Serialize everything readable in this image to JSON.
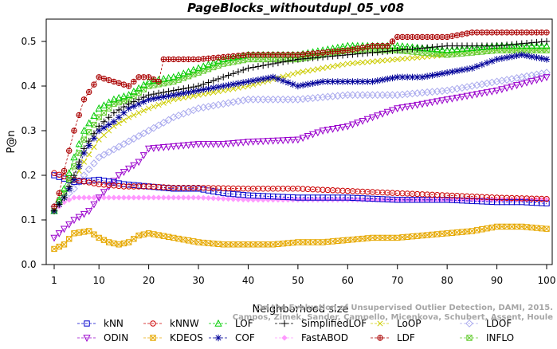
{
  "chart_data": {
    "type": "line",
    "title": "PageBlocks_withoutdupl_05_v08",
    "xlabel": "Neighborhood size",
    "ylabel": "P@n",
    "xlim": [
      1,
      100
    ],
    "ylim": [
      0,
      0.55
    ],
    "x_ticks": [
      1,
      10,
      20,
      30,
      40,
      50,
      60,
      70,
      80,
      90,
      100
    ],
    "y_ticks": [
      0.0,
      0.1,
      0.2,
      0.3,
      0.4,
      0.5
    ],
    "credit": "Campos, Zimek, Sander, Campello, Micenkova, Schubert, Assent, Houle",
    "credit_line1": "On the Evaluation of Unsupervised Outlier Detection, DAMI, 2015.",
    "series": [
      {
        "name": "kNN",
        "color": "#0000cc",
        "marker": "square",
        "x": [
          1,
          5,
          10,
          15,
          20,
          25,
          30,
          35,
          40,
          50,
          60,
          70,
          80,
          90,
          95,
          100
        ],
        "y": [
          0.2,
          0.185,
          0.19,
          0.18,
          0.175,
          0.17,
          0.17,
          0.16,
          0.155,
          0.15,
          0.15,
          0.145,
          0.145,
          0.14,
          0.14,
          0.137
        ]
      },
      {
        "name": "kNNW",
        "color": "#cc0000",
        "marker": "circle",
        "x": [
          1,
          5,
          10,
          15,
          20,
          25,
          30,
          40,
          50,
          60,
          70,
          80,
          90,
          100
        ],
        "y": [
          0.205,
          0.19,
          0.18,
          0.175,
          0.175,
          0.172,
          0.172,
          0.17,
          0.17,
          0.165,
          0.16,
          0.155,
          0.15,
          0.147
        ]
      },
      {
        "name": "LOF",
        "color": "#00cc00",
        "marker": "triangle-up",
        "x": [
          1,
          3,
          5,
          7,
          10,
          13,
          16,
          20,
          25,
          30,
          35,
          40,
          50,
          60,
          70,
          80,
          90,
          100
        ],
        "y": [
          0.12,
          0.17,
          0.24,
          0.3,
          0.35,
          0.37,
          0.38,
          0.41,
          0.42,
          0.44,
          0.46,
          0.47,
          0.47,
          0.49,
          0.49,
          0.48,
          0.49,
          0.49
        ]
      },
      {
        "name": "SimplifiedLOF",
        "color": "#000000",
        "marker": "plus",
        "x": [
          1,
          3,
          5,
          7,
          10,
          13,
          16,
          20,
          25,
          30,
          35,
          40,
          50,
          60,
          70,
          80,
          90,
          100
        ],
        "y": [
          0.12,
          0.15,
          0.2,
          0.26,
          0.31,
          0.34,
          0.36,
          0.38,
          0.39,
          0.4,
          0.42,
          0.44,
          0.46,
          0.47,
          0.48,
          0.49,
          0.49,
          0.5
        ]
      },
      {
        "name": "LoOP",
        "color": "#cccc00",
        "marker": "x",
        "x": [
          1,
          3,
          5,
          7,
          10,
          13,
          16,
          20,
          25,
          30,
          35,
          40,
          50,
          60,
          70,
          80,
          90,
          100
        ],
        "y": [
          0.12,
          0.15,
          0.19,
          0.23,
          0.28,
          0.31,
          0.33,
          0.35,
          0.37,
          0.38,
          0.39,
          0.4,
          0.43,
          0.45,
          0.46,
          0.47,
          0.48,
          0.48
        ]
      },
      {
        "name": "LDOF",
        "color": "#aaaaee",
        "marker": "diamond",
        "x": [
          1,
          3,
          5,
          7,
          10,
          15,
          20,
          25,
          30,
          35,
          40,
          50,
          60,
          70,
          80,
          90,
          100
        ],
        "y": [
          0.13,
          0.15,
          0.17,
          0.2,
          0.24,
          0.27,
          0.3,
          0.33,
          0.35,
          0.36,
          0.37,
          0.37,
          0.38,
          0.38,
          0.39,
          0.41,
          0.43
        ]
      },
      {
        "name": "ODIN",
        "color": "#9900cc",
        "marker": "triangle-down",
        "x": [
          1,
          3,
          5,
          8,
          10,
          14,
          18,
          20,
          25,
          30,
          35,
          40,
          50,
          55,
          60,
          70,
          80,
          90,
          100
        ],
        "y": [
          0.06,
          0.08,
          0.1,
          0.12,
          0.15,
          0.2,
          0.23,
          0.26,
          0.265,
          0.27,
          0.27,
          0.275,
          0.28,
          0.3,
          0.31,
          0.35,
          0.37,
          0.39,
          0.42
        ]
      },
      {
        "name": "KDEOS",
        "color": "#e6a800",
        "marker": "square-x",
        "x": [
          1,
          3,
          5,
          8,
          10,
          12,
          14,
          16,
          18,
          20,
          25,
          30,
          35,
          40,
          45,
          50,
          55,
          60,
          65,
          70,
          75,
          80,
          85,
          90,
          95,
          100
        ],
        "y": [
          0.035,
          0.045,
          0.07,
          0.075,
          0.06,
          0.05,
          0.045,
          0.05,
          0.065,
          0.07,
          0.06,
          0.05,
          0.045,
          0.045,
          0.045,
          0.05,
          0.05,
          0.055,
          0.06,
          0.06,
          0.065,
          0.07,
          0.075,
          0.085,
          0.085,
          0.08
        ]
      },
      {
        "name": "COF",
        "color": "#000099",
        "marker": "star",
        "x": [
          1,
          3,
          5,
          7,
          10,
          13,
          16,
          20,
          25,
          30,
          35,
          40,
          45,
          50,
          55,
          60,
          65,
          70,
          75,
          80,
          85,
          90,
          95,
          100
        ],
        "y": [
          0.12,
          0.15,
          0.19,
          0.25,
          0.3,
          0.32,
          0.35,
          0.37,
          0.38,
          0.39,
          0.4,
          0.41,
          0.42,
          0.4,
          0.41,
          0.41,
          0.41,
          0.42,
          0.42,
          0.43,
          0.44,
          0.46,
          0.47,
          0.46
        ]
      },
      {
        "name": "FastABOD",
        "color": "#ff99ff",
        "marker": "diamond-filled",
        "x": [
          1,
          3,
          5,
          8,
          10,
          15,
          20,
          25,
          30,
          40,
          50,
          60,
          70,
          80,
          90,
          100
        ],
        "y": [
          0.12,
          0.14,
          0.15,
          0.15,
          0.15,
          0.15,
          0.15,
          0.15,
          0.15,
          0.145,
          0.145,
          0.145,
          0.145,
          0.145,
          0.145,
          0.145
        ]
      },
      {
        "name": "LDF",
        "color": "#aa0000",
        "marker": "circle-plus",
        "x": [
          1,
          2,
          3,
          5,
          7,
          10,
          13,
          16,
          18,
          20,
          22,
          23,
          25,
          30,
          40,
          50,
          60,
          65,
          68,
          70,
          75,
          80,
          85,
          90,
          95,
          100
        ],
        "y": [
          0.13,
          0.16,
          0.21,
          0.3,
          0.37,
          0.42,
          0.41,
          0.4,
          0.42,
          0.42,
          0.41,
          0.46,
          0.46,
          0.46,
          0.47,
          0.47,
          0.48,
          0.49,
          0.49,
          0.51,
          0.51,
          0.51,
          0.52,
          0.52,
          0.52,
          0.52
        ]
      },
      {
        "name": "INFLO",
        "color": "#66cc33",
        "marker": "square-check",
        "x": [
          1,
          3,
          5,
          7,
          10,
          13,
          16,
          20,
          25,
          30,
          35,
          40,
          50,
          60,
          70,
          80,
          90,
          100
        ],
        "y": [
          0.12,
          0.16,
          0.22,
          0.28,
          0.33,
          0.36,
          0.37,
          0.4,
          0.41,
          0.43,
          0.45,
          0.46,
          0.46,
          0.48,
          0.48,
          0.47,
          0.48,
          0.48
        ]
      }
    ]
  }
}
